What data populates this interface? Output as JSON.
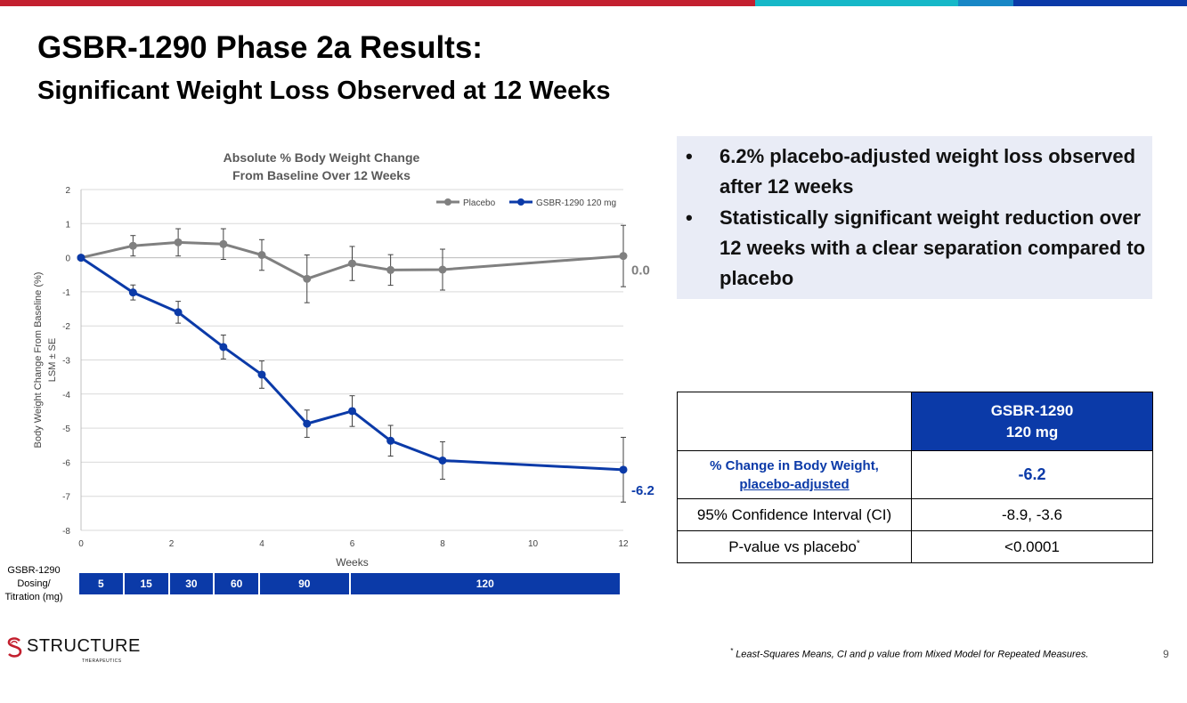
{
  "top_bar_colors": [
    "#c3202f",
    "#16b8c8",
    "#1887c6",
    "#0b3aa8"
  ],
  "header": {
    "title": "GSBR-1290 Phase 2a Results:",
    "subtitle": "Significant Weight Loss Observed at 12 Weeks"
  },
  "bullets": [
    "6.2% placebo-adjusted weight loss observed after 12 weeks",
    "Statistically significant weight reduction over 12 weeks with a clear separation compared to placebo"
  ],
  "bullet_glyph": "•",
  "table": {
    "header": [
      "",
      "GSBR-1290",
      "120 mg"
    ],
    "rows": [
      {
        "label_line1": "% Change in Body Weight,",
        "label_line2": "placebo-adjusted",
        "value": "-6.2"
      },
      {
        "label": "95% Confidence Interval (CI)",
        "value": "-8.9, -3.6"
      },
      {
        "label": "P-value vs placebo",
        "label_sup": "*",
        "value": "<0.0001"
      }
    ]
  },
  "dosing": {
    "label_lines": [
      "GSBR-1290",
      "Dosing/",
      "Titration (mg)"
    ],
    "segments": [
      {
        "label": "5",
        "start_week": 0,
        "end_week": 1
      },
      {
        "label": "15",
        "start_week": 1,
        "end_week": 2
      },
      {
        "label": "30",
        "start_week": 2,
        "end_week": 3
      },
      {
        "label": "60",
        "start_week": 3,
        "end_week": 4
      },
      {
        "label": "90",
        "start_week": 4,
        "end_week": 6
      },
      {
        "label": "120",
        "start_week": 6,
        "end_week": 12
      }
    ]
  },
  "chart_data": {
    "type": "line",
    "title": "Absolute % Body Weight Change From Baseline Over 12 Weeks",
    "title_lines": [
      "Absolute % Body Weight Change",
      "From Baseline Over 12 Weeks"
    ],
    "xlabel": "Weeks",
    "ylabel": "Body Weight Change From Baseline  (%) LSM ± SE",
    "ylabel_lines": [
      "Body Weight Change From Baseline  (%)",
      "LSM ± SE"
    ],
    "xlim": [
      0,
      12
    ],
    "ylim": [
      -8,
      2
    ],
    "xticks": [
      0,
      2,
      4,
      6,
      8,
      10,
      12
    ],
    "yticks": [
      2,
      1,
      0,
      -1,
      -2,
      -3,
      -4,
      -5,
      -6,
      -7,
      -8
    ],
    "grid": true,
    "legend_position": "top-right",
    "series": [
      {
        "name": "Placebo",
        "color": "#808080",
        "x": [
          0,
          1.15,
          2.15,
          3.15,
          4,
          5,
          6,
          6.85,
          8,
          12
        ],
        "y": [
          0,
          0.35,
          0.45,
          0.4,
          0.08,
          -0.62,
          -0.17,
          -0.36,
          -0.35,
          0.05
        ],
        "err": [
          0,
          0.3,
          0.4,
          0.45,
          0.45,
          0.7,
          0.5,
          0.45,
          0.6,
          0.9
        ],
        "end_label": "0.0"
      },
      {
        "name": "GSBR-1290 120 mg",
        "color": "#0b3aa8",
        "x": [
          0,
          1.15,
          2.15,
          3.15,
          4,
          5,
          6,
          6.85,
          8,
          12
        ],
        "y": [
          0,
          -1.02,
          -1.6,
          -2.62,
          -3.43,
          -4.87,
          -4.5,
          -5.37,
          -5.95,
          -6.22
        ],
        "err": [
          0,
          0.22,
          0.32,
          0.35,
          0.4,
          0.4,
          0.45,
          0.45,
          0.55,
          0.95
        ],
        "end_label": "-6.2"
      }
    ]
  },
  "logo": {
    "name": "STRUCTURE",
    "tagline": "THERAPEUTICS"
  },
  "footnote": "Least-Squares Means, CI and p value from Mixed Model for Repeated Measures.",
  "footnote_marker": "*",
  "page_number": "9"
}
